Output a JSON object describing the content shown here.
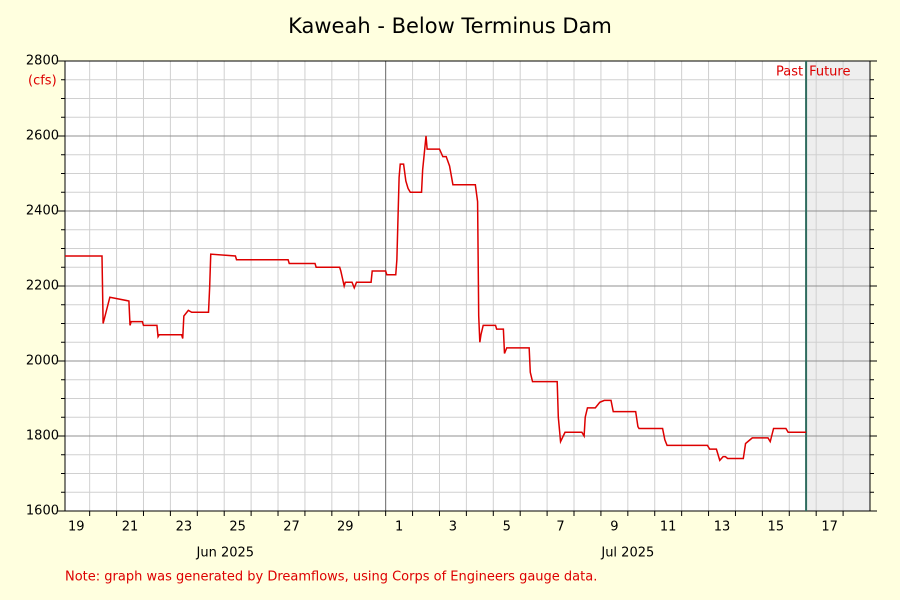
{
  "chart_data": {
    "type": "line",
    "title": "Kaweah - Below Terminus Dam",
    "y_unit": "(cfs)",
    "past_label": "Past",
    "future_label": "Future",
    "now": "2025-07-16T15:00",
    "note": "Note: graph was generated by Dreamflows, using Corps of Engineers gauge data.",
    "color": "#dd0000",
    "x": [
      "2025-06-19T02:00",
      "2025-06-20T11:00",
      "2025-06-20T12:00",
      "2025-06-20T18:00",
      "2025-06-21T11:00",
      "2025-06-21T12:00",
      "2025-06-21T13:00",
      "2025-06-21T23:00",
      "2025-06-22T00:00",
      "2025-06-22T12:00",
      "2025-06-22T13:00",
      "2025-06-22T14:00",
      "2025-06-23T10:00",
      "2025-06-23T11:00",
      "2025-06-23T12:00",
      "2025-06-23T16:00",
      "2025-06-23T19:00",
      "2025-06-24T10:00",
      "2025-06-24T11:00",
      "2025-06-24T12:00",
      "2025-06-25T10:00",
      "2025-06-25T11:00",
      "2025-06-27T09:00",
      "2025-06-27T10:00",
      "2025-06-28T09:00",
      "2025-06-28T10:00",
      "2025-06-29T07:00",
      "2025-06-29T08:00",
      "2025-06-29T11:00",
      "2025-06-29T12:00",
      "2025-06-29T18:00",
      "2025-06-29T20:00",
      "2025-06-29T22:00",
      "2025-06-30T11:00",
      "2025-06-30T12:00",
      "2025-07-01T00:00",
      "2025-07-01T01:00",
      "2025-07-01T09:00",
      "2025-07-01T10:00",
      "2025-07-01T12:00",
      "2025-07-01T13:00",
      "2025-07-01T16:00",
      "2025-07-01T18:00",
      "2025-07-01T20:00",
      "2025-07-01T22:00",
      "2025-07-02T08:00",
      "2025-07-02T09:00",
      "2025-07-02T12:00",
      "2025-07-02T13:00",
      "2025-07-03T00:00",
      "2025-07-03T03:00",
      "2025-07-03T06:00",
      "2025-07-03T09:00",
      "2025-07-03T12:00",
      "2025-07-04T08:00",
      "2025-07-04T10:00",
      "2025-07-04T11:00",
      "2025-07-04T12:00",
      "2025-07-04T13:00",
      "2025-07-04T15:00",
      "2025-07-05T02:00",
      "2025-07-05T03:00",
      "2025-07-05T09:00",
      "2025-07-05T10:00",
      "2025-07-05T12:00",
      "2025-07-06T08:00",
      "2025-07-06T09:00",
      "2025-07-06T11:00",
      "2025-07-07T09:00",
      "2025-07-07T10:00",
      "2025-07-07T12:00",
      "2025-07-07T16:00",
      "2025-07-08T07:00",
      "2025-07-08T09:00",
      "2025-07-08T10:00",
      "2025-07-08T12:00",
      "2025-07-08T19:00",
      "2025-07-08T23:00",
      "2025-07-09T03:00",
      "2025-07-09T09:00",
      "2025-07-09T11:00",
      "2025-07-10T07:00",
      "2025-07-10T09:00",
      "2025-07-10T10:00",
      "2025-07-11T07:00",
      "2025-07-11T09:00",
      "2025-07-11T11:00",
      "2025-07-12T23:00",
      "2025-07-13T01:00",
      "2025-07-13T07:00",
      "2025-07-13T10:00",
      "2025-07-13T13:00",
      "2025-07-13T15:00",
      "2025-07-13T17:00",
      "2025-07-14T07:00",
      "2025-07-14T09:00",
      "2025-07-14T13:00",
      "2025-07-14T15:00",
      "2025-07-15T05:00",
      "2025-07-15T07:00",
      "2025-07-15T10:00",
      "2025-07-15T21:00",
      "2025-07-15T23:00",
      "2025-07-16T15:00"
    ],
    "values": [
      2280,
      2280,
      2100,
      2170,
      2160,
      2095,
      2105,
      2105,
      2095,
      2095,
      2065,
      2070,
      2070,
      2060,
      2120,
      2135,
      2130,
      2130,
      2195,
      2285,
      2280,
      2270,
      2270,
      2260,
      2260,
      2250,
      2250,
      2240,
      2200,
      2210,
      2210,
      2195,
      2210,
      2210,
      2240,
      2240,
      2230,
      2230,
      2270,
      2490,
      2525,
      2525,
      2480,
      2460,
      2450,
      2450,
      2510,
      2600,
      2565,
      2565,
      2545,
      2545,
      2520,
      2470,
      2470,
      2425,
      2120,
      2050,
      2070,
      2095,
      2095,
      2085,
      2085,
      2020,
      2035,
      2035,
      1970,
      1945,
      1945,
      1850,
      1785,
      1810,
      1810,
      1800,
      1850,
      1875,
      1875,
      1890,
      1895,
      1895,
      1865,
      1865,
      1825,
      1820,
      1820,
      1790,
      1775,
      1775,
      1765,
      1765,
      1735,
      1745,
      1745,
      1740,
      1740,
      1780,
      1790,
      1795,
      1795,
      1785,
      1820,
      1820,
      1810,
      1810
    ],
    "xlim": [
      "2025-06-19T02:00",
      "2025-07-19T00:00"
    ],
    "xticks": [
      {
        "value": "2025-06-19T12:00",
        "label": "19"
      },
      {
        "value": "2025-06-21T12:00",
        "label": "21"
      },
      {
        "value": "2025-06-23T12:00",
        "label": "23"
      },
      {
        "value": "2025-06-25T12:00",
        "label": "25"
      },
      {
        "value": "2025-06-27T12:00",
        "label": "27"
      },
      {
        "value": "2025-06-29T12:00",
        "label": "29"
      },
      {
        "value": "2025-07-01T12:00",
        "label": "1"
      },
      {
        "value": "2025-07-03T12:00",
        "label": "3"
      },
      {
        "value": "2025-07-05T12:00",
        "label": "5"
      },
      {
        "value": "2025-07-07T12:00",
        "label": "7"
      },
      {
        "value": "2025-07-09T12:00",
        "label": "9"
      },
      {
        "value": "2025-07-11T12:00",
        "label": "11"
      },
      {
        "value": "2025-07-13T12:00",
        "label": "13"
      },
      {
        "value": "2025-07-15T12:00",
        "label": "15"
      },
      {
        "value": "2025-07-17T12:00",
        "label": "17"
      }
    ],
    "months": [
      {
        "start": "2025-06-01T00:00",
        "label": "Jun 2025"
      },
      {
        "start": "2025-07-01T00:00",
        "label": "Jul 2025"
      }
    ],
    "ylim": [
      1600,
      2800
    ],
    "yticks": [
      1600,
      1800,
      2000,
      2200,
      2400,
      2600,
      2800
    ],
    "grid": true
  }
}
